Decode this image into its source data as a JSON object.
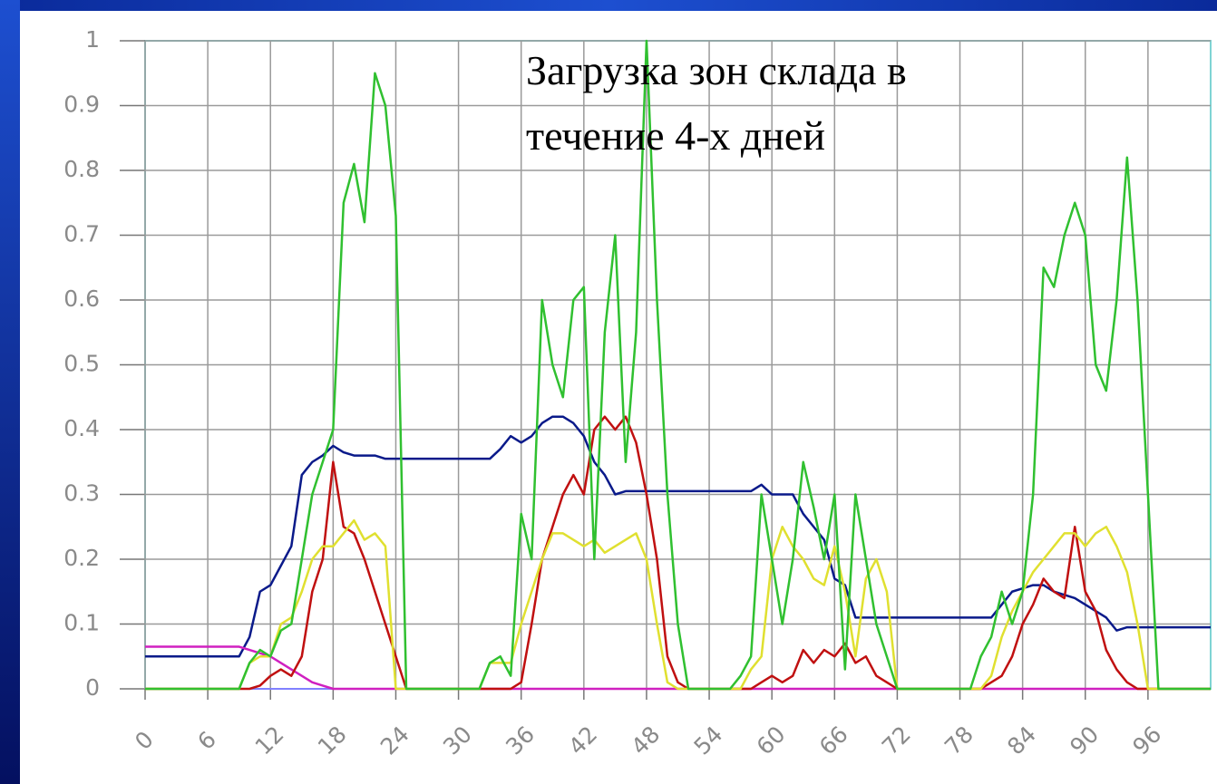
{
  "chart_data": {
    "type": "line",
    "title": "Загрузка зон склада в течение 4-х дней",
    "x": [
      0,
      1,
      2,
      3,
      4,
      5,
      6,
      7,
      8,
      9,
      10,
      11,
      12,
      13,
      14,
      15,
      16,
      17,
      18,
      19,
      20,
      21,
      22,
      23,
      24,
      25,
      26,
      27,
      28,
      29,
      30,
      31,
      32,
      33,
      34,
      35,
      36,
      37,
      38,
      39,
      40,
      41,
      42,
      43,
      44,
      45,
      46,
      47,
      48,
      49,
      50,
      51,
      52,
      53,
      54,
      55,
      56,
      57,
      58,
      59,
      60,
      61,
      62,
      63,
      64,
      65,
      66,
      67,
      68,
      69,
      70,
      71,
      72,
      73,
      74,
      75,
      76,
      77,
      78,
      79,
      80,
      81,
      82,
      83,
      84,
      85,
      86,
      87,
      88,
      89,
      90,
      91,
      92,
      93,
      94,
      95,
      96,
      97,
      98,
      99,
      100,
      101,
      102
    ],
    "series": [
      {
        "color": "#0a1a8a",
        "values": [
          0.05,
          0.05,
          0.05,
          0.05,
          0.05,
          0.05,
          0.05,
          0.05,
          0.05,
          0.05,
          0.08,
          0.15,
          0.16,
          0.19,
          0.22,
          0.33,
          0.35,
          0.36,
          0.375,
          0.365,
          0.36,
          0.36,
          0.36,
          0.355,
          0.355,
          0.355,
          0.355,
          0.355,
          0.355,
          0.355,
          0.355,
          0.355,
          0.355,
          0.355,
          0.37,
          0.39,
          0.38,
          0.39,
          0.41,
          0.42,
          0.42,
          0.41,
          0.39,
          0.35,
          0.33,
          0.3,
          0.305,
          0.305,
          0.305,
          0.305,
          0.305,
          0.305,
          0.305,
          0.305,
          0.305,
          0.305,
          0.305,
          0.305,
          0.305,
          0.315,
          0.3,
          0.3,
          0.3,
          0.27,
          0.25,
          0.23,
          0.17,
          0.16,
          0.11,
          0.11,
          0.11,
          0.11,
          0.11,
          0.11,
          0.11,
          0.11,
          0.11,
          0.11,
          0.11,
          0.11,
          0.11,
          0.11,
          0.13,
          0.15,
          0.155,
          0.16,
          0.16,
          0.15,
          0.145,
          0.14,
          0.13,
          0.12,
          0.11,
          0.09,
          0.095,
          0.095,
          0.095,
          0.095,
          0.095,
          0.095,
          0.095,
          0.095,
          0.095
        ]
      },
      {
        "color": "#d020c0",
        "values": [
          0.065,
          0.065,
          0.065,
          0.065,
          0.065,
          0.065,
          0.065,
          0.065,
          0.065,
          0.065,
          0.06,
          0.055,
          0.05,
          0.04,
          0.03,
          0.02,
          0.01,
          0.005,
          0,
          0,
          0,
          0,
          0,
          0,
          0,
          0,
          0,
          0,
          0,
          0,
          0,
          0,
          0,
          0,
          0,
          0,
          0,
          0,
          0,
          0,
          0,
          0,
          0,
          0,
          0,
          0,
          0,
          0,
          0,
          0,
          0,
          0,
          0,
          0,
          0,
          0,
          0,
          0,
          0,
          0,
          0,
          0,
          0,
          0,
          0,
          0,
          0,
          0,
          0,
          0,
          0,
          0,
          0,
          0,
          0,
          0,
          0,
          0,
          0,
          0,
          0,
          0,
          0,
          0,
          0,
          0,
          0,
          0,
          0,
          0,
          0,
          0,
          0,
          0,
          0,
          0,
          0,
          0,
          0,
          0,
          0,
          0,
          0
        ]
      },
      {
        "color": "#c01010",
        "values": [
          0,
          0,
          0,
          0,
          0,
          0,
          0,
          0,
          0,
          0,
          0,
          0.005,
          0.02,
          0.03,
          0.02,
          0.05,
          0.15,
          0.2,
          0.35,
          0.25,
          0.24,
          0.2,
          0.15,
          0.1,
          0.05,
          0,
          0,
          0,
          0,
          0,
          0,
          0,
          0,
          0,
          0,
          0,
          0.01,
          0.1,
          0.2,
          0.25,
          0.3,
          0.33,
          0.3,
          0.4,
          0.42,
          0.4,
          0.42,
          0.38,
          0.3,
          0.2,
          0.05,
          0.01,
          0,
          0,
          0,
          0,
          0,
          0,
          0,
          0.01,
          0.02,
          0.01,
          0.02,
          0.06,
          0.04,
          0.06,
          0.05,
          0.07,
          0.04,
          0.05,
          0.02,
          0.01,
          0,
          0,
          0,
          0,
          0,
          0,
          0,
          0,
          0,
          0.01,
          0.02,
          0.05,
          0.1,
          0.13,
          0.17,
          0.15,
          0.14,
          0.25,
          0.15,
          0.12,
          0.06,
          0.03,
          0.01,
          0,
          0,
          0,
          0,
          0,
          0,
          0,
          0
        ]
      },
      {
        "color": "#e0e030",
        "values": [
          0,
          0,
          0,
          0,
          0,
          0,
          0,
          0,
          0,
          0,
          0.04,
          0.05,
          0.05,
          0.1,
          0.11,
          0.15,
          0.2,
          0.22,
          0.22,
          0.24,
          0.26,
          0.23,
          0.24,
          0.22,
          0,
          0,
          0,
          0,
          0,
          0,
          0,
          0,
          0,
          0.04,
          0.04,
          0.04,
          0.1,
          0.15,
          0.2,
          0.24,
          0.24,
          0.23,
          0.22,
          0.23,
          0.21,
          0.22,
          0.23,
          0.24,
          0.2,
          0.1,
          0.01,
          0,
          0,
          0,
          0,
          0,
          0,
          0,
          0.03,
          0.05,
          0.2,
          0.25,
          0.22,
          0.2,
          0.17,
          0.16,
          0.22,
          0.15,
          0.05,
          0.17,
          0.2,
          0.15,
          0,
          0,
          0,
          0,
          0,
          0,
          0,
          0,
          0,
          0.02,
          0.08,
          0.12,
          0.15,
          0.18,
          0.2,
          0.22,
          0.24,
          0.24,
          0.22,
          0.24,
          0.25,
          0.22,
          0.18,
          0.1,
          0,
          0,
          0,
          0,
          0,
          0,
          0
        ]
      },
      {
        "color": "#30c030",
        "values": [
          0,
          0,
          0,
          0,
          0,
          0,
          0,
          0,
          0,
          0,
          0.04,
          0.06,
          0.05,
          0.09,
          0.1,
          0.2,
          0.3,
          0.35,
          0.4,
          0.75,
          0.81,
          0.72,
          0.95,
          0.9,
          0.73,
          0,
          0,
          0,
          0,
          0,
          0,
          0,
          0,
          0.04,
          0.05,
          0.02,
          0.27,
          0.2,
          0.6,
          0.5,
          0.45,
          0.6,
          0.62,
          0.2,
          0.55,
          0.7,
          0.35,
          0.55,
          1.0,
          0.6,
          0.3,
          0.1,
          0,
          0,
          0,
          0,
          0,
          0.02,
          0.05,
          0.3,
          0.2,
          0.1,
          0.2,
          0.35,
          0.28,
          0.2,
          0.3,
          0.03,
          0.3,
          0.2,
          0.1,
          0.05,
          0,
          0,
          0,
          0,
          0,
          0,
          0,
          0,
          0.05,
          0.08,
          0.15,
          0.1,
          0.15,
          0.3,
          0.65,
          0.62,
          0.7,
          0.75,
          0.7,
          0.5,
          0.46,
          0.6,
          0.82,
          0.6,
          0.3,
          0,
          0,
          0,
          0,
          0,
          0
        ]
      }
    ],
    "xlim": [
      0,
      102
    ],
    "xticks": [
      0,
      6,
      12,
      18,
      24,
      30,
      36,
      42,
      48,
      54,
      60,
      66,
      72,
      78,
      84,
      90,
      96
    ],
    "ylim": [
      0,
      1
    ],
    "yticks": [
      0,
      0.1,
      0.2,
      0.3,
      0.4,
      0.5,
      0.6,
      0.7,
      0.8,
      0.9,
      1
    ],
    "grid": true
  }
}
